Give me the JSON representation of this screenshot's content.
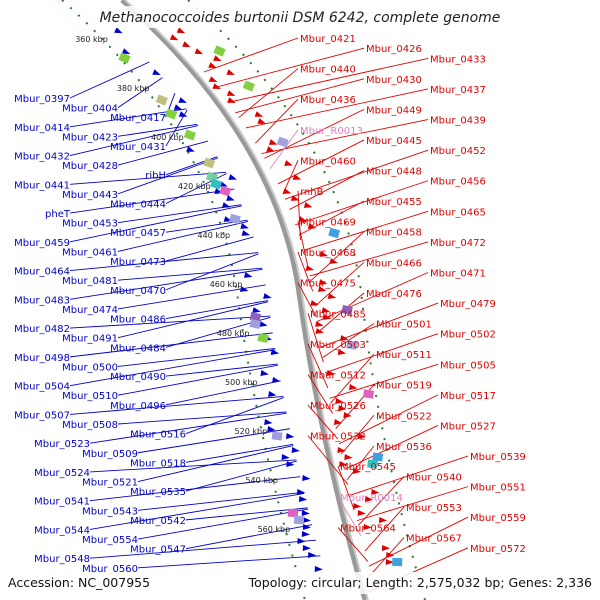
{
  "title": "Methanococcoides burtonii DSM 6242, complete genome",
  "footer": {
    "accession": "Accession: NC_007955",
    "summary": "Topology: circular; Length: 2,575,032 bp; Genes: 2,336"
  },
  "colors": {
    "forward": "#e00000",
    "reverse": "#0000cc",
    "rna": "#e080c0",
    "backbone": "#999999",
    "ticks": "#2a7a2a"
  },
  "scale_ticks": [
    "360 kbp",
    "380 kbp",
    "400 kbp",
    "420 kbp",
    "440 kbp",
    "460 kbp",
    "480 kbp",
    "500 kbp",
    "520 kbp",
    "540 kbp",
    "560 kbp"
  ],
  "left_labels": [
    "Mbur_0397",
    "Mbur_0404",
    "Mbur_0417",
    "Mbur_0414",
    "Mbur_0423",
    "Mbur_0431",
    "Mbur_0432",
    "Mbur_0428",
    "ribH",
    "Mbur_0441",
    "Mbur_0443",
    "Mbur_0444",
    "pheT",
    "Mbur_0453",
    "Mbur_0457",
    "Mbur_0459",
    "Mbur_0461",
    "Mbur_0473",
    "Mbur_0464",
    "Mbur_0481",
    "Mbur_0470",
    "Mbur_0483",
    "Mbur_0474",
    "Mbur_0486",
    "Mbur_0482",
    "Mbur_0491",
    "Mbur_0484",
    "Mbur_0498",
    "Mbur_0500",
    "Mbur_0490",
    "Mbur_0504",
    "Mbur_0510",
    "Mbur_0496",
    "Mbur_0507",
    "Mbur_0508",
    "Mbur_0516",
    "Mbur_0523",
    "Mbur_0509",
    "Mbur_0518",
    "Mbur_0524",
    "Mbur_0521",
    "Mbur_0535",
    "Mbur_0541",
    "Mbur_0543",
    "Mbur_0542",
    "Mbur_0544",
    "Mbur_0554",
    "Mbur_0547",
    "Mbur_0548",
    "Mbur_0560"
  ],
  "right_labels": [
    "Mbur_0421",
    "Mbur_0426",
    "Mbur_0433",
    "Mbur_0440",
    "Mbur_0430",
    "Mbur_0437",
    "Mbur_0436",
    "Mbur_0449",
    "Mbur_0439",
    "Mbur_R0013",
    "Mbur_0445",
    "Mbur_0452",
    "Mbur_0460",
    "Mbur_0448",
    "Mbur_0456",
    "rnhB",
    "Mbur_0455",
    "Mbur_0465",
    "Mbur_0469",
    "Mbur_0458",
    "Mbur_0472",
    "Mbur_0468",
    "Mbur_0466",
    "Mbur_0471",
    "Mbur_0475",
    "Mbur_0476",
    "Mbur_0479",
    "Mbur_0485",
    "Mbur_0501",
    "Mbur_0502",
    "Mbur_0503",
    "Mbur_0511",
    "Mbur_0505",
    "Mbur_0512",
    "Mbur_0519",
    "Mbur_0517",
    "Mbur_0526",
    "Mbur_0522",
    "Mbur_0527",
    "Mbur_0532",
    "Mbur_0536",
    "Mbur_0539",
    "Mbur_0545",
    "Mbur_0540",
    "Mbur_0551",
    "Mbur_R0014",
    "Mbur_0553",
    "Mbur_0559",
    "Mbur_0564",
    "Mbur_0567",
    "Mbur_0572"
  ]
}
